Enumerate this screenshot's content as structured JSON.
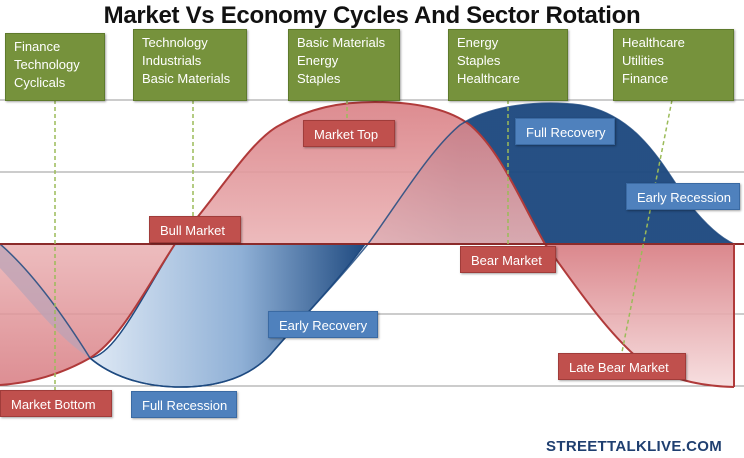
{
  "title": "Market Vs Economy Cycles And Sector Rotation",
  "sectors": [
    {
      "lines": [
        "Finance",
        "Technology",
        "Cyclicals"
      ]
    },
    {
      "lines": [
        "Technology",
        "Industrials",
        "Basic Materials"
      ]
    },
    {
      "lines": [
        "Basic Materials",
        "Energy",
        "Staples"
      ]
    },
    {
      "lines": [
        "Energy",
        "Staples",
        "Healthcare"
      ]
    },
    {
      "lines": [
        "Healthcare",
        "Utilities",
        "Finance"
      ]
    }
  ],
  "market_labels": {
    "bull_market": "Bull Market",
    "market_top": "Market Top",
    "bear_market": "Bear Market",
    "late_bear_market": "Late Bear Market",
    "market_bottom": "Market Bottom"
  },
  "economy_labels": {
    "full_recovery": "Full Recovery",
    "early_recession": "Early Recession",
    "early_recovery": "Early Recovery",
    "full_recession": "Full Recession"
  },
  "footer": "STREETTALKLIVE.COM",
  "colors": {
    "market_line": "#b03a3a",
    "market_fill": "#d9868a",
    "economy_dark": "#1f4a80",
    "economy_light": "#dce8f6",
    "sector_box": "#76923c",
    "market_label": "#c0504d",
    "economy_label": "#4f81bd"
  }
}
